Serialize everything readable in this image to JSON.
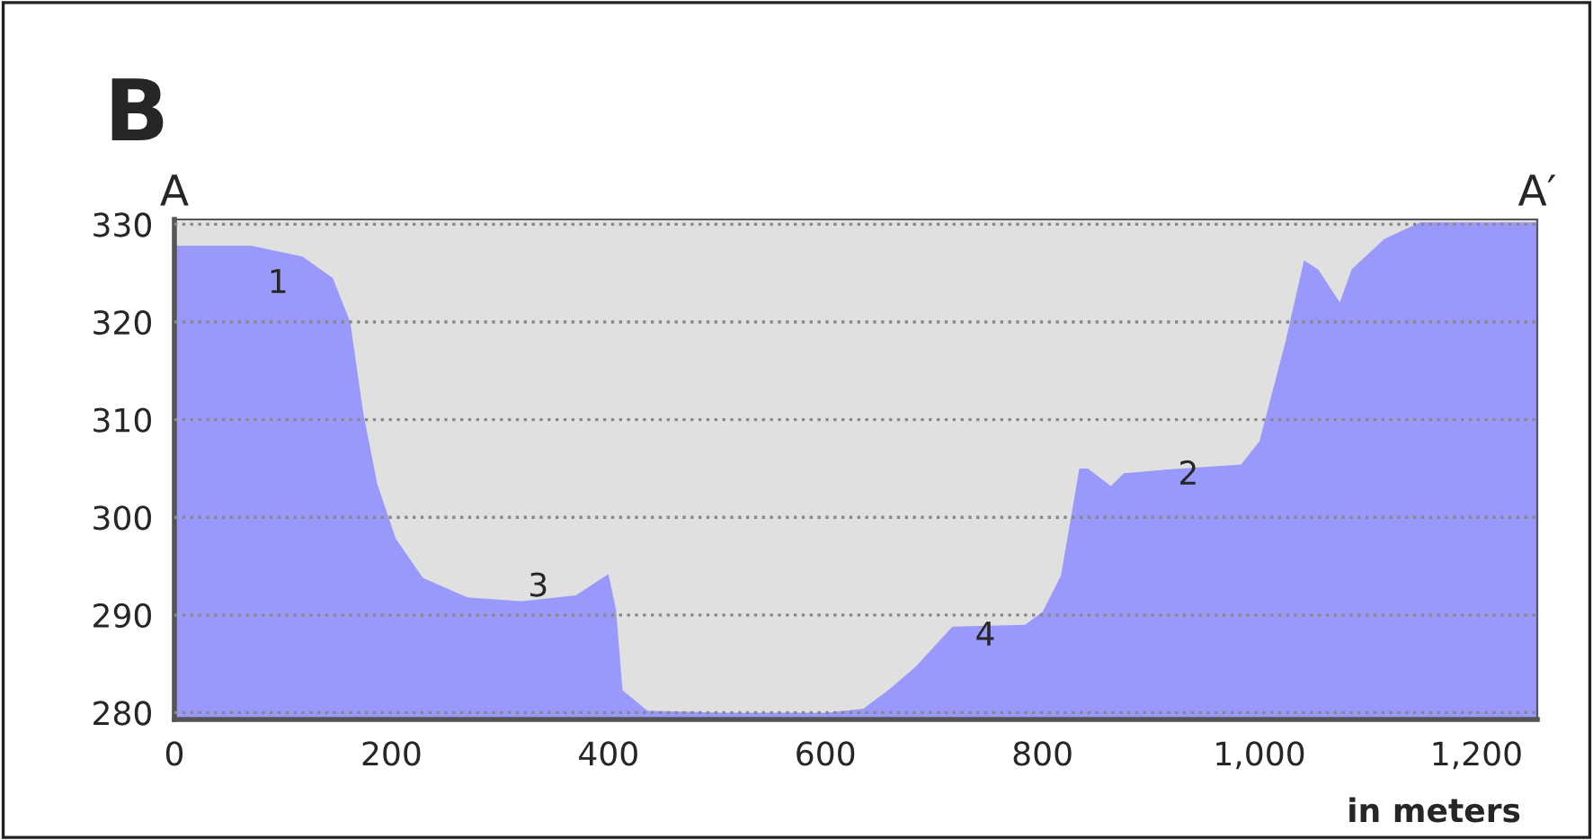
{
  "chart_data": {
    "type": "area",
    "title": "B",
    "xlabel": "in meters",
    "x": [
      0,
      71,
      118,
      146,
      162,
      174,
      187,
      204,
      229,
      270,
      320,
      370,
      400,
      407,
      413,
      436,
      502,
      601,
      635,
      659,
      684,
      717,
      784,
      800,
      817,
      834,
      842,
      863,
      875,
      916,
      983,
      1000,
      1024,
      1041,
      1054,
      1074,
      1085,
      1115,
      1148,
      1256
    ],
    "series": [
      {
        "color": "#9999fc",
        "values": [
          327.8,
          327.8,
          326.7,
          324.5,
          320,
          310.7,
          303.4,
          297.8,
          293.8,
          291.8,
          291.4,
          292,
          294.2,
          290.5,
          282.3,
          280.2,
          280,
          280,
          280.4,
          282.4,
          284.8,
          288.8,
          289,
          290.3,
          294,
          305,
          305,
          303.2,
          304.5,
          304.9,
          305.4,
          307.8,
          318,
          326.3,
          325.4,
          322,
          325.4,
          328.5,
          330.2,
          330.2
        ]
      }
    ],
    "xlim": [
      0,
      1256
    ],
    "ylim": [
      279.3,
      330.5
    ],
    "xticks": [
      0,
      200,
      400,
      600,
      800,
      {
        "value": 1000,
        "label": "1,000"
      },
      {
        "value": 1200,
        "label": "1,200"
      }
    ],
    "yticks": [
      280,
      290,
      300,
      310,
      320,
      330
    ],
    "grid": "y",
    "annotations": [
      "A",
      "A′",
      "1",
      "3",
      "4",
      "2"
    ]
  }
}
